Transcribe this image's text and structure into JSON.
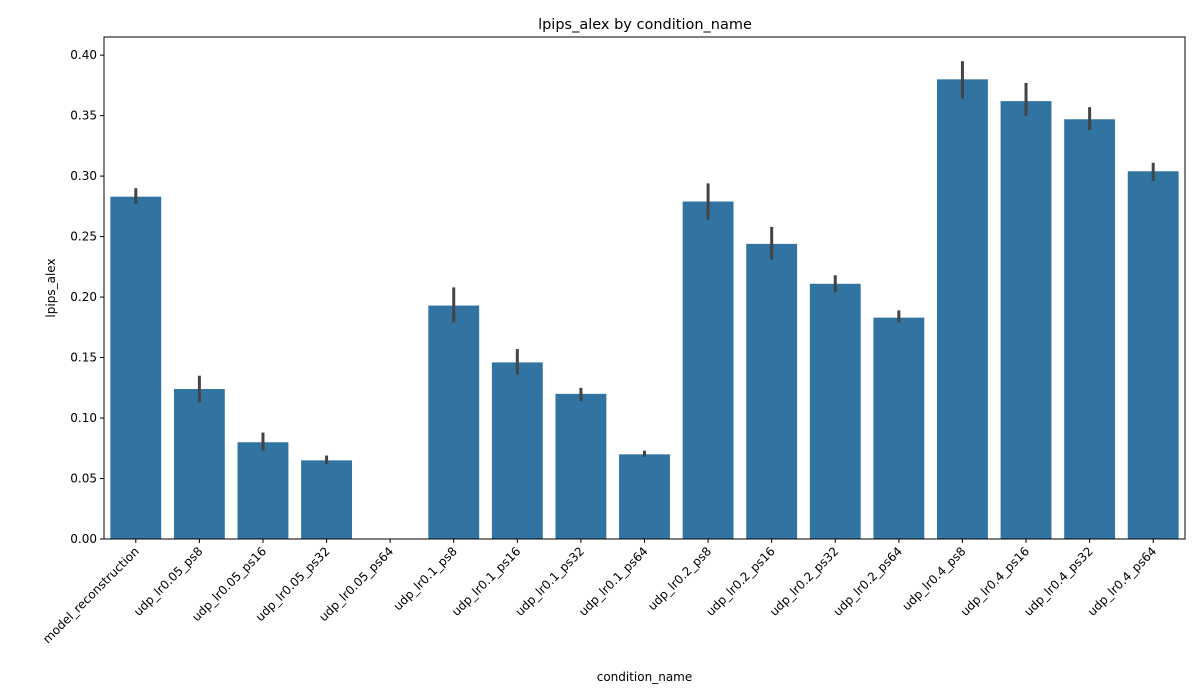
{
  "chart_data": {
    "type": "bar",
    "title": "lpips_alex by condition_name",
    "xlabel": "condition_name",
    "ylabel": "lpips_alex",
    "ylim": [
      0,
      0.415
    ],
    "yticks": [
      "0.00",
      "0.05",
      "0.10",
      "0.15",
      "0.20",
      "0.25",
      "0.30",
      "0.35",
      "0.40"
    ],
    "grid": false,
    "bar_color": "#3274a1",
    "error_color": "#444444",
    "categories": [
      "model_reconstruction",
      "udp_lr0.05_ps8",
      "udp_lr0.05_ps16",
      "udp_lr0.05_ps32",
      "udp_lr0.05_ps64",
      "udp_lr0.1_ps8",
      "udp_lr0.1_ps16",
      "udp_lr0.1_ps32",
      "udp_lr0.1_ps64",
      "udp_lr0.2_ps8",
      "udp_lr0.2_ps16",
      "udp_lr0.2_ps32",
      "udp_lr0.2_ps64",
      "udp_lr0.4_ps8",
      "udp_lr0.4_ps16",
      "udp_lr0.4_ps32",
      "udp_lr0.4_ps64"
    ],
    "values": [
      0.283,
      0.124,
      0.08,
      0.065,
      null,
      0.193,
      0.146,
      0.12,
      0.07,
      0.279,
      0.244,
      0.211,
      0.183,
      0.38,
      0.362,
      0.347,
      0.304
    ],
    "error_low": [
      0.277,
      0.113,
      0.073,
      0.062,
      null,
      0.179,
      0.136,
      0.114,
      0.068,
      0.264,
      0.231,
      0.204,
      0.179,
      0.364,
      0.35,
      0.338,
      0.296
    ],
    "error_high": [
      0.29,
      0.135,
      0.088,
      0.069,
      null,
      0.208,
      0.157,
      0.125,
      0.073,
      0.294,
      0.258,
      0.218,
      0.189,
      0.395,
      0.377,
      0.357,
      0.311
    ]
  }
}
